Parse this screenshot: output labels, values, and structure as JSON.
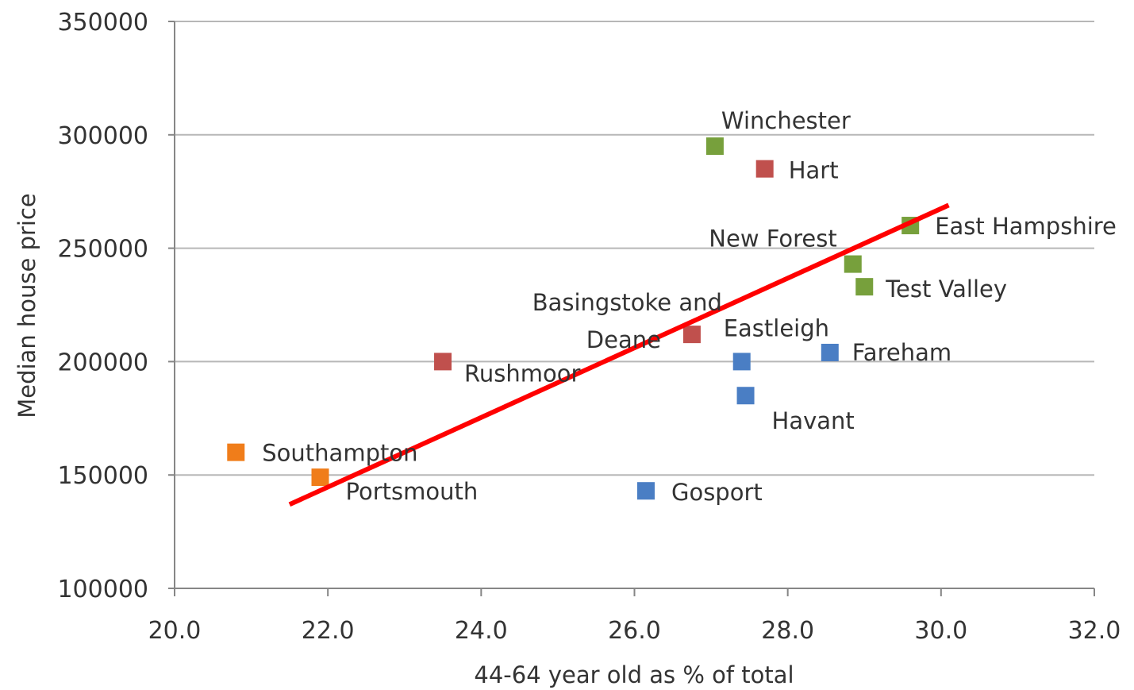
{
  "chart_data": {
    "type": "scatter",
    "title": "",
    "xlabel": "44-64 year old as % of total",
    "ylabel": "Median house price",
    "xlim": [
      20.0,
      32.0
    ],
    "ylim": [
      100000,
      350000
    ],
    "x_ticks": [
      "20.0",
      "22.0",
      "24.0",
      "26.0",
      "28.0",
      "30.0",
      "32.0"
    ],
    "y_ticks": [
      "100000",
      "150000",
      "200000",
      "250000",
      "300000",
      "350000"
    ],
    "grid": "horizontal",
    "colors": {
      "green": "#77a03c",
      "red": "#c0504d",
      "blue": "#4a7ec4",
      "orange": "#f07d1a",
      "trend": "#ff0000",
      "grid": "#b7b7b7",
      "axis": "#868686"
    },
    "points": [
      {
        "label": "Winchester",
        "x": 27.05,
        "y": 295000,
        "group": "green"
      },
      {
        "label": "Hart",
        "x": 27.7,
        "y": 285000,
        "group": "red"
      },
      {
        "label": "East Hampshire",
        "x": 29.6,
        "y": 260000,
        "group": "green"
      },
      {
        "label": "New Forest",
        "x": 28.85,
        "y": 243000,
        "group": "green"
      },
      {
        "label": "Test Valley",
        "x": 29.0,
        "y": 233000,
        "group": "green"
      },
      {
        "label": "Basingstoke and Deane",
        "x": 26.75,
        "y": 212000,
        "group": "red"
      },
      {
        "label": "Eastleigh",
        "x": 27.4,
        "y": 200000,
        "group": "blue"
      },
      {
        "label": "Fareham",
        "x": 28.55,
        "y": 204000,
        "group": "blue"
      },
      {
        "label": "Havant",
        "x": 27.45,
        "y": 185000,
        "group": "blue"
      },
      {
        "label": "Rushmoor",
        "x": 23.5,
        "y": 200000,
        "group": "red"
      },
      {
        "label": "Southampton",
        "x": 20.8,
        "y": 160000,
        "group": "orange"
      },
      {
        "label": "Portsmouth",
        "x": 21.9,
        "y": 149000,
        "group": "orange"
      },
      {
        "label": "Gosport",
        "x": 26.15,
        "y": 143000,
        "group": "blue"
      }
    ],
    "trendline": {
      "x": [
        21.5,
        30.1
      ],
      "y": [
        137000,
        269000
      ]
    }
  }
}
